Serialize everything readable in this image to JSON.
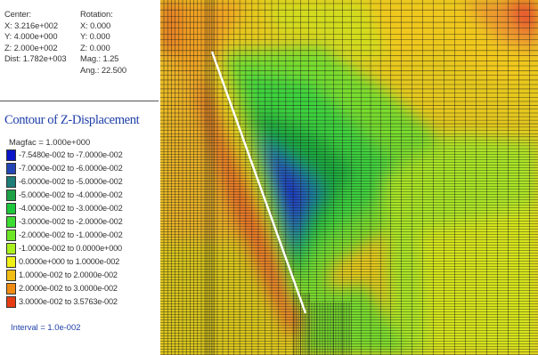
{
  "view_info": {
    "center_label": "Center:",
    "center_x": "X: 3.216e+002",
    "center_y": "Y: 4.000e+000",
    "center_z": "Z: 2.000e+002",
    "dist": "Dist: 1.782e+003",
    "rotation_label": "Rotation:",
    "rot_x": "X:  0.000",
    "rot_y": "Y:  0.000",
    "rot_z": "Z:  0.000",
    "mag": "Mag.:    1.25",
    "ang": "Ang.:  22.500"
  },
  "contour": {
    "title": "Contour of Z-Displacement",
    "magfac": "Magfac = 1.000e+000",
    "interval": "Interval = 1.0e-002",
    "legend": [
      {
        "label": "-7.5480e-002 to -7.0000e-002",
        "color": "#0a14c8"
      },
      {
        "label": "-7.0000e-002 to -6.0000e-002",
        "color": "#2446b4"
      },
      {
        "label": "-6.0000e-002 to -5.0000e-002",
        "color": "#1e7d78"
      },
      {
        "label": "-5.0000e-002 to -4.0000e-002",
        "color": "#1ea046"
      },
      {
        "label": "-4.0000e-002 to -3.0000e-002",
        "color": "#1ec83c"
      },
      {
        "label": "-3.0000e-002 to -2.0000e-002",
        "color": "#3cdc32"
      },
      {
        "label": "-2.0000e-002 to -1.0000e-002",
        "color": "#6ee628"
      },
      {
        "label": "-1.0000e-002 to  0.0000e+000",
        "color": "#aaf01e"
      },
      {
        "label": " 0.0000e+000 to  1.0000e-002",
        "color": "#f0f014"
      },
      {
        "label": " 1.0000e-002 to  2.0000e-002",
        "color": "#f0be14"
      },
      {
        "label": " 2.0000e-002 to  3.0000e-002",
        "color": "#f08c14"
      },
      {
        "label": " 3.0000e-002 to  3.5763e-002",
        "color": "#e63c14"
      }
    ]
  }
}
